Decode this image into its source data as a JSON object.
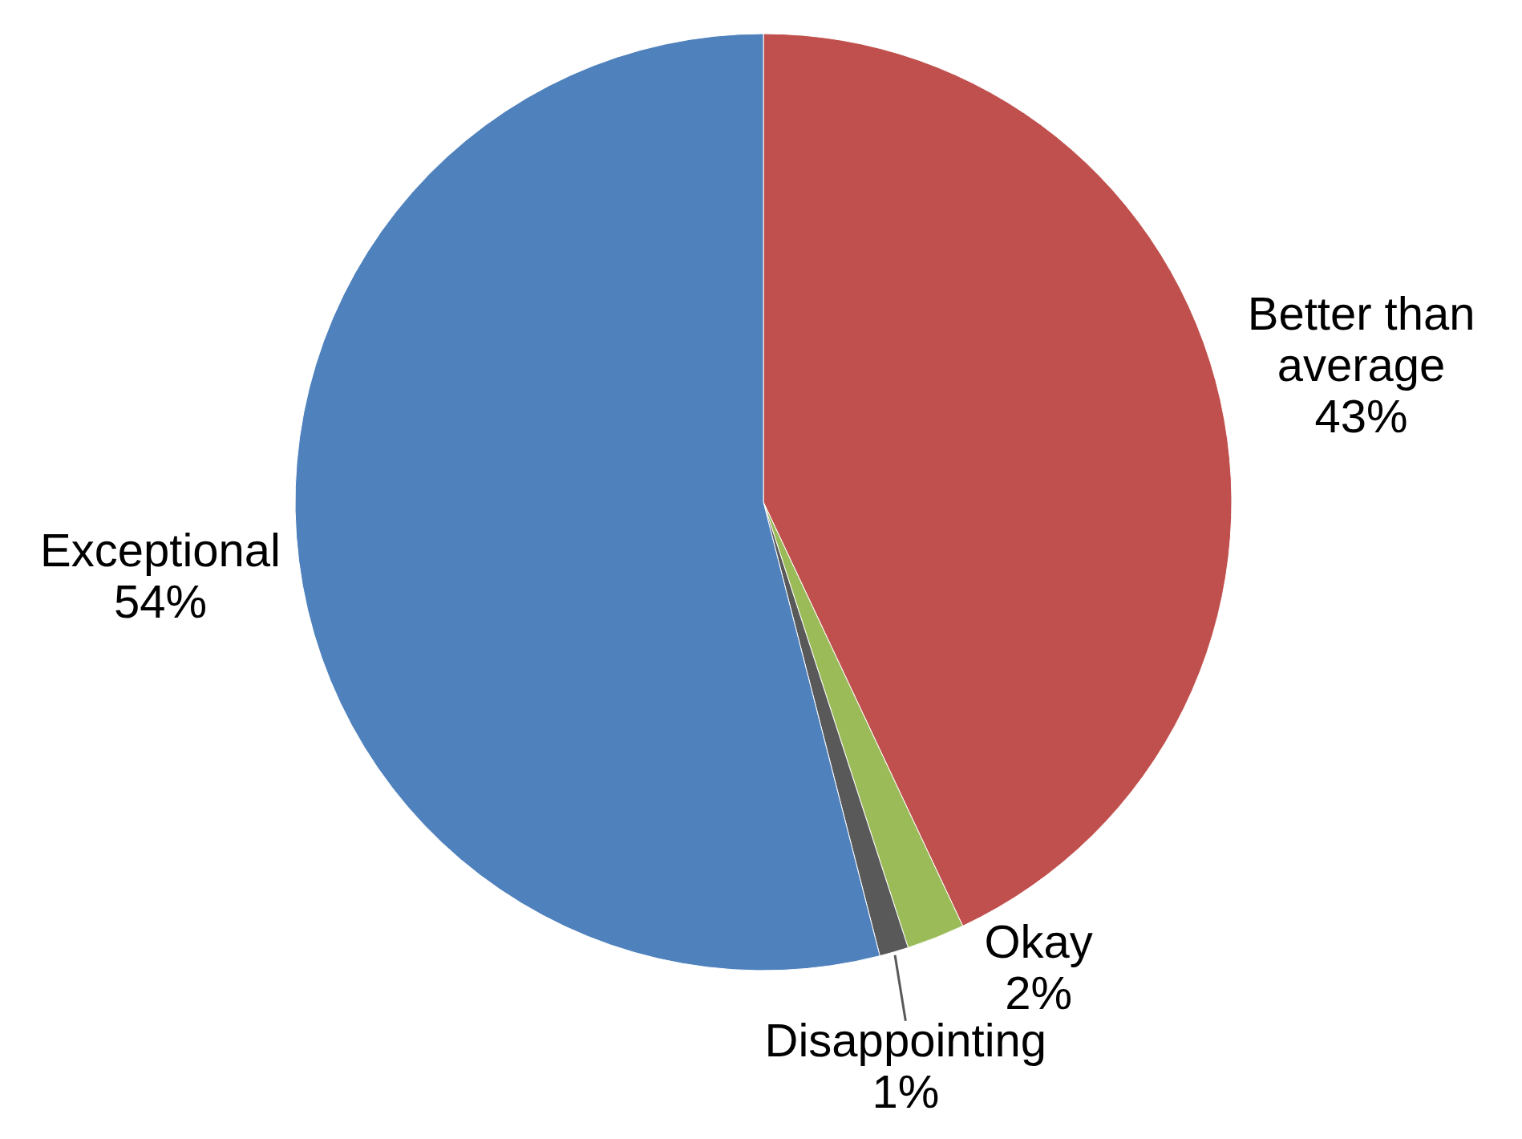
{
  "chart_data": {
    "type": "pie",
    "categories": [
      "Better than average",
      "Okay",
      "Disappointing",
      "Exceptional"
    ],
    "values": [
      43,
      2,
      1,
      54
    ],
    "colors": [
      "#c0504d",
      "#9bbb59",
      "#595959",
      "#4f81bd"
    ],
    "value_labels": [
      "43%",
      "2%",
      "1%",
      "54%"
    ]
  }
}
